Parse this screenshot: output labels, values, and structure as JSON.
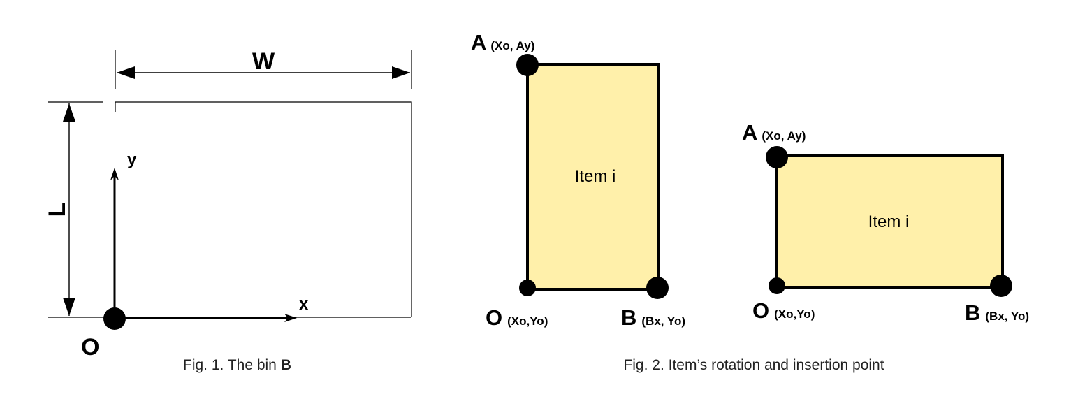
{
  "colors": {
    "stroke": "#000000",
    "item_fill": "#fff0aa",
    "caption": "#222222"
  },
  "fig1": {
    "width_label": "W",
    "length_label": "L",
    "x_axis_label": "x",
    "y_axis_label": "y",
    "origin_label": "O",
    "caption_text": "Fig. 1. The bin ",
    "caption_bold": "B"
  },
  "fig2": {
    "caption": "Fig. 2. Item’s rotation and insertion point",
    "items": [
      {
        "label": "Item i",
        "point_a": {
          "name": "A",
          "coord": "(Xo, Ay)"
        },
        "point_o": {
          "name": "O",
          "coord": "(Xo,Yo)"
        },
        "point_b": {
          "name": "B",
          "coord": "(Bx, Yo)"
        }
      },
      {
        "label": "Item i",
        "point_a": {
          "name": "A",
          "coord": "(Xo, Ay)"
        },
        "point_o": {
          "name": "O",
          "coord": "(Xo,Yo)"
        },
        "point_b": {
          "name": "B",
          "coord": "(Bx, Yo)"
        }
      }
    ]
  }
}
